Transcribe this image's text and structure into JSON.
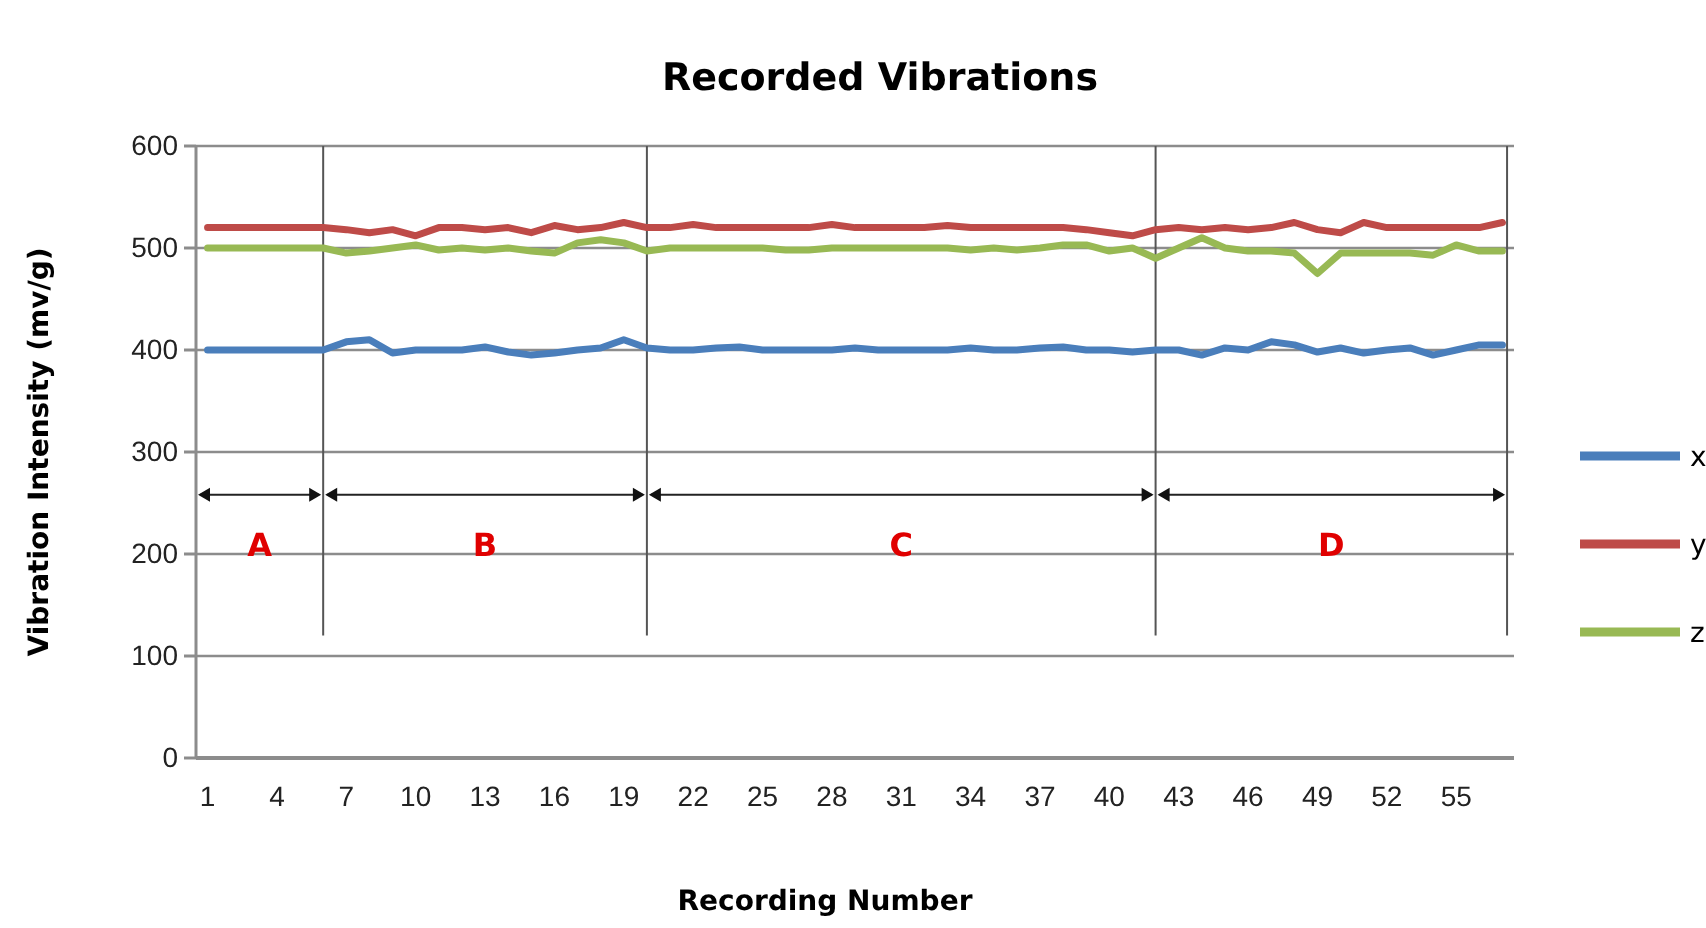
{
  "chart_data": {
    "type": "line",
    "title": "Recorded Vibrations",
    "xlabel": "Recording Number",
    "ylabel": "Vibration Intensity (mv/g)",
    "x": [
      1,
      2,
      3,
      4,
      5,
      6,
      7,
      8,
      9,
      10,
      11,
      12,
      13,
      14,
      15,
      16,
      17,
      18,
      19,
      20,
      21,
      22,
      23,
      24,
      25,
      26,
      27,
      28,
      29,
      30,
      31,
      32,
      33,
      34,
      35,
      36,
      37,
      38,
      39,
      40,
      41,
      42,
      43,
      44,
      45,
      46,
      47,
      48,
      49,
      50,
      51,
      52,
      53,
      54,
      55,
      56,
      57
    ],
    "xlim": [
      0.5,
      57.5
    ],
    "xticks": [
      1,
      4,
      7,
      10,
      13,
      16,
      19,
      22,
      25,
      28,
      31,
      34,
      37,
      40,
      43,
      46,
      49,
      52,
      55
    ],
    "ylim": [
      0,
      600
    ],
    "yticks": [
      0,
      100,
      200,
      300,
      400,
      500,
      600
    ],
    "grid": "y",
    "legend": "right",
    "marker": "none",
    "line_style": "solid",
    "series": [
      {
        "name": "x",
        "color": "#4a7ebb",
        "values": [
          400,
          400,
          400,
          400,
          400,
          400,
          408,
          410,
          397,
          400,
          400,
          400,
          403,
          398,
          395,
          397,
          400,
          402,
          410,
          402,
          400,
          400,
          402,
          403,
          400,
          400,
          400,
          400,
          402,
          400,
          400,
          400,
          400,
          402,
          400,
          400,
          402,
          403,
          400,
          400,
          398,
          400,
          400,
          395,
          402,
          400,
          408,
          405,
          398,
          402,
          397,
          400,
          402,
          395,
          400,
          405,
          405
        ]
      },
      {
        "name": "y",
        "color": "#be4b48",
        "values": [
          520,
          520,
          520,
          520,
          520,
          520,
          518,
          515,
          518,
          512,
          520,
          520,
          518,
          520,
          515,
          522,
          518,
          520,
          525,
          520,
          520,
          523,
          520,
          520,
          520,
          520,
          520,
          523,
          520,
          520,
          520,
          520,
          522,
          520,
          520,
          520,
          520,
          520,
          518,
          515,
          512,
          518,
          520,
          518,
          520,
          518,
          520,
          525,
          518,
          515,
          525,
          520,
          520,
          520,
          520,
          520,
          525
        ]
      },
      {
        "name": "z",
        "color": "#98b954",
        "values": [
          500,
          500,
          500,
          500,
          500,
          500,
          495,
          497,
          500,
          503,
          498,
          500,
          498,
          500,
          497,
          495,
          505,
          508,
          505,
          497,
          500,
          500,
          500,
          500,
          500,
          498,
          498,
          500,
          500,
          500,
          500,
          500,
          500,
          498,
          500,
          498,
          500,
          503,
          503,
          497,
          500,
          490,
          500,
          510,
          500,
          497,
          497,
          495,
          475,
          495,
          495,
          495,
          495,
          493,
          503,
          497,
          497
        ]
      }
    ],
    "ref_lines": [
      {
        "axis": "x",
        "value": 6,
        "color": "#555555"
      },
      {
        "axis": "x",
        "value": 20,
        "color": "#555555"
      },
      {
        "axis": "x",
        "value": 42,
        "color": "#555555"
      },
      {
        "axis": "x",
        "value": 57.2,
        "color": "#555555"
      }
    ],
    "annotations": [
      "A",
      "B",
      "C",
      "D"
    ]
  }
}
